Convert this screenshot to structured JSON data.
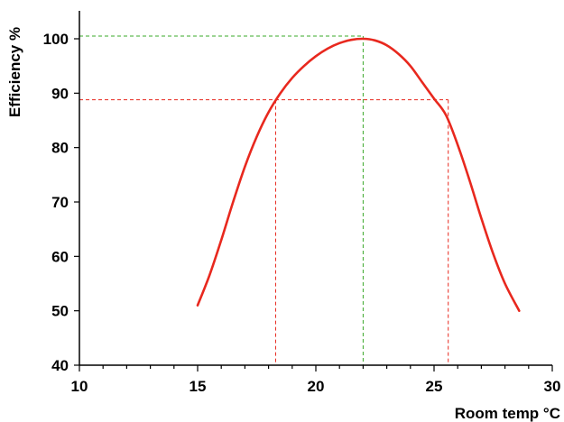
{
  "chart_data": {
    "type": "line",
    "title": "",
    "xlabel": "Room temp °C",
    "ylabel": "Efficiency %",
    "xlim": [
      10,
      30
    ],
    "ylim": [
      40,
      100
    ],
    "x_ticks": [
      10,
      15,
      20,
      25,
      30
    ],
    "y_ticks": [
      40,
      50,
      60,
      70,
      80,
      90,
      100
    ],
    "x_minor_step": 1,
    "grid": false,
    "series": [
      {
        "color": "#e8281e",
        "x": [
          15.0,
          15.5,
          16.0,
          16.5,
          17.0,
          17.5,
          18.0,
          18.5,
          19.0,
          19.5,
          20.0,
          20.5,
          21.0,
          21.5,
          22.0,
          22.5,
          23.0,
          23.5,
          24.0,
          24.5,
          25.0,
          25.5,
          26.0,
          26.5,
          27.0,
          27.5,
          28.0,
          28.6
        ],
        "y": [
          51.0,
          56.5,
          63.0,
          70.0,
          76.5,
          82.0,
          86.5,
          90.0,
          92.8,
          95.0,
          96.8,
          98.2,
          99.2,
          99.8,
          100.0,
          99.7,
          98.8,
          97.2,
          95.0,
          92.0,
          89.0,
          86.0,
          80.5,
          74.0,
          67.0,
          60.5,
          55.0,
          50.0
        ]
      }
    ],
    "reference_lines": [
      {
        "color": "#3aa82a",
        "style": "dashed",
        "x": 22.0,
        "y": 100.5
      },
      {
        "color": "#e8281e",
        "style": "dashed",
        "y": 88.8,
        "x_points": [
          18.3,
          25.6
        ]
      }
    ]
  }
}
